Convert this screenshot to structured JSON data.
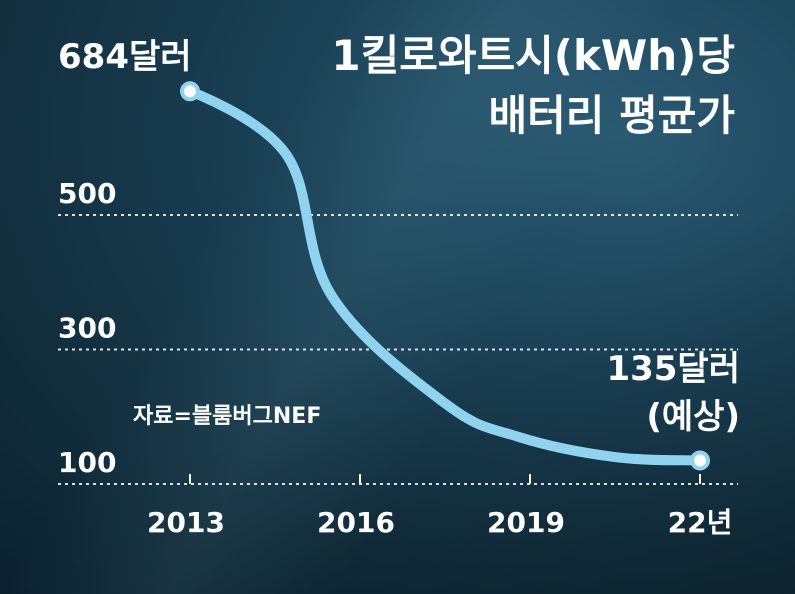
{
  "chart_data": {
    "type": "line",
    "title": [
      "1킬로와트시(kWh)당",
      "배터리 평균가"
    ],
    "x": [
      2013,
      2014.7,
      2015.5,
      2017.5,
      2018.8,
      2020.5,
      2022
    ],
    "values": [
      684,
      590,
      380,
      220,
      170,
      140,
      135
    ],
    "xticks": [
      2013,
      2016,
      2019,
      2022
    ],
    "xtick_labels": [
      "2013",
      "2016",
      "2019",
      "22년"
    ],
    "yticks": [
      100,
      300,
      500
    ],
    "ytick_labels": [
      "100",
      "300",
      "500"
    ],
    "ylim": [
      100,
      700
    ],
    "annotations": {
      "start": "684달러",
      "end_value": "135달러",
      "end_note": "(예상)"
    },
    "source": "자료=블룸버그NEF",
    "line_color": "#8fd3ef",
    "grid": "dashed-horizontal"
  }
}
